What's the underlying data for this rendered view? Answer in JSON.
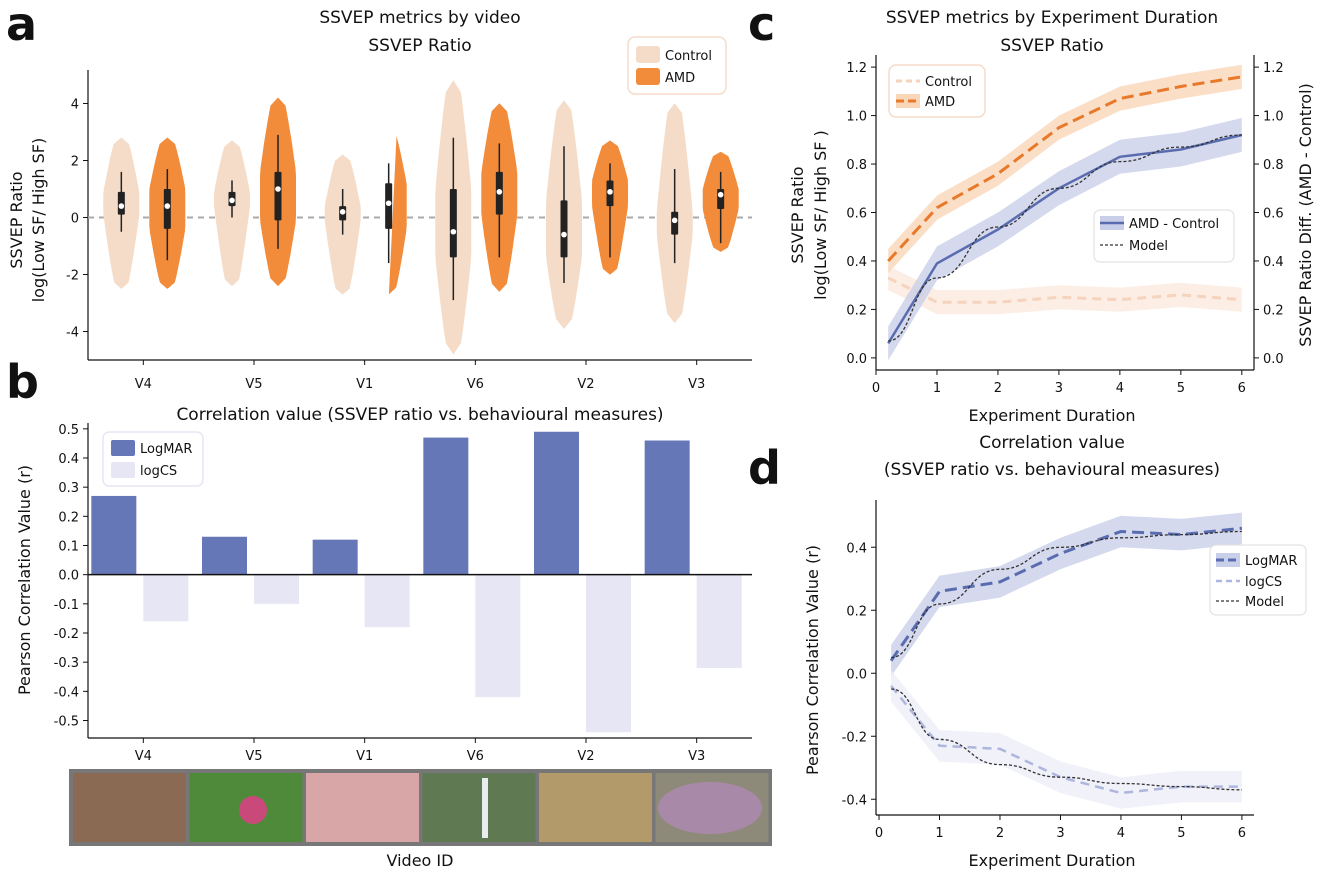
{
  "figure": {
    "colors": {
      "control_light": "#f5dcc8",
      "amd": "#f28c3a",
      "logmar": "#6677b8",
      "logcs": "#e6e6f5",
      "axis": "#111111",
      "zero_dash": "#aaaaaa",
      "model": "#333333"
    },
    "panel_labels": {
      "a": "a",
      "b": "b",
      "c": "c",
      "d": "d"
    }
  },
  "chart_data": [
    {
      "id": "a",
      "type": "violin",
      "title": "SSVEP metrics by video",
      "subtitle": "SSVEP Ratio",
      "ylabel": [
        "SSVEP Ratio",
        "log(Low SF/ High SF)"
      ],
      "ylim": [
        -5,
        5
      ],
      "yticks": [
        -4,
        -2,
        0,
        2,
        4
      ],
      "ytick_labels": [
        "-4",
        "-2",
        "0",
        "2",
        "4"
      ],
      "categories": [
        "V4",
        "V5",
        "V1",
        "V6",
        "V2",
        "V3"
      ],
      "legend": {
        "position": "top-right",
        "items": [
          "Control",
          "AMD"
        ]
      },
      "series": [
        {
          "name": "Control",
          "median": [
            0.4,
            0.6,
            0.2,
            -0.5,
            -0.6,
            -0.1
          ],
          "q1": [
            0.1,
            0.4,
            -0.1,
            -1.4,
            -1.4,
            -0.6
          ],
          "q3": [
            0.9,
            0.9,
            0.4,
            1.0,
            0.6,
            0.2
          ],
          "whisker_low": [
            -0.5,
            0.0,
            -0.6,
            -2.9,
            -2.3,
            -1.6
          ],
          "whisker_high": [
            1.6,
            1.3,
            1.0,
            2.8,
            2.5,
            1.7
          ],
          "min": [
            -2.5,
            -2.4,
            -2.7,
            -4.8,
            -3.9,
            -3.7
          ],
          "max": [
            2.8,
            2.7,
            2.2,
            4.8,
            4.1,
            4.0
          ]
        },
        {
          "name": "AMD",
          "median": [
            0.4,
            1.0,
            0.5,
            0.9,
            0.9,
            0.8
          ],
          "q1": [
            -0.4,
            -0.1,
            -0.4,
            0.1,
            0.4,
            0.3
          ],
          "q3": [
            1.0,
            1.6,
            1.2,
            1.6,
            1.3,
            1.0
          ],
          "whisker_low": [
            -1.5,
            -1.1,
            -1.6,
            -1.4,
            -1.4,
            -0.9
          ],
          "whisker_high": [
            1.7,
            2.9,
            1.9,
            2.6,
            1.9,
            1.6
          ],
          "min": [
            -2.5,
            -2.4,
            -2.7,
            -2.6,
            -2.0,
            -1.2
          ],
          "max": [
            2.8,
            4.2,
            3.1,
            4.0,
            2.7,
            2.3
          ]
        }
      ],
      "reference_line": 0
    },
    {
      "id": "b",
      "type": "bar",
      "title": "Correlation value (SSVEP ratio vs. behavioural measures)",
      "ylabel": "Pearson Correlation Value (r)",
      "xlabel": "Video ID",
      "ylim": [
        -0.56,
        0.52
      ],
      "yticks": [
        0.5,
        0.4,
        0.3,
        0.2,
        0.1,
        0.0,
        -0.1,
        -0.2,
        -0.3,
        -0.4,
        -0.5
      ],
      "ytick_labels": [
        "0.5",
        "0.4",
        "0.3",
        "0.2",
        "0.1",
        "0.0",
        "-0.1",
        "-0.2",
        "-0.3",
        "-0.4",
        "-0.5"
      ],
      "categories": [
        "V4",
        "V5",
        "V1",
        "V6",
        "V2",
        "V3"
      ],
      "legend": {
        "position": "top-left",
        "items": [
          "LogMAR",
          "logCS"
        ]
      },
      "series": [
        {
          "name": "LogMAR",
          "values": [
            0.27,
            0.13,
            0.12,
            0.47,
            0.49,
            0.46
          ]
        },
        {
          "name": "logCS",
          "values": [
            -0.16,
            -0.1,
            -0.18,
            -0.42,
            -0.54,
            -0.32
          ]
        }
      ],
      "thumbnails": [
        "V4",
        "V5",
        "V1",
        "V6",
        "V2",
        "V3"
      ]
    },
    {
      "id": "c",
      "type": "line",
      "title": "SSVEP metrics by Experiment Duration",
      "subtitle": "SSVEP Ratio",
      "ylabel": [
        "SSVEP Ratio",
        "log(Low SF/ High SF )"
      ],
      "ylabel_right": "SSVEP Ratio Diff. (AMD - Control)",
      "xlabel": "Experiment Duration",
      "xlim": [
        0,
        6.2
      ],
      "ylim": [
        -0.05,
        1.25
      ],
      "xticks": [
        0,
        1,
        2,
        3,
        4,
        5,
        6
      ],
      "xtick_labels": [
        "0",
        "1",
        "2",
        "3",
        "4",
        "5",
        "6"
      ],
      "yticks": [
        0.0,
        0.2,
        0.4,
        0.6,
        0.8,
        1.0,
        1.2
      ],
      "ytick_labels": [
        "0.0",
        "0.2",
        "0.4",
        "0.6",
        "0.8",
        "1.0",
        "1.2"
      ],
      "legend_top": {
        "position": "top-left",
        "items": [
          "Control",
          "AMD"
        ]
      },
      "legend_mid": {
        "position": "center-right",
        "items": [
          "AMD - Control",
          "Model"
        ]
      },
      "x": [
        0.2,
        1,
        2,
        3,
        4,
        5,
        6
      ],
      "series": [
        {
          "name": "Control",
          "values": [
            0.33,
            0.23,
            0.23,
            0.25,
            0.24,
            0.26,
            0.24
          ],
          "band": 0.05,
          "style": "dashed-light"
        },
        {
          "name": "AMD",
          "values": [
            0.4,
            0.62,
            0.76,
            0.95,
            1.07,
            1.12,
            1.16
          ],
          "band": 0.05,
          "style": "dashed"
        },
        {
          "name": "AMD - Control",
          "values": [
            0.06,
            0.39,
            0.53,
            0.7,
            0.83,
            0.86,
            0.92
          ],
          "band": 0.07,
          "style": "solid"
        },
        {
          "name": "Model",
          "values": [
            0.07,
            0.33,
            0.54,
            0.7,
            0.81,
            0.87,
            0.92
          ],
          "style": "dotted"
        }
      ]
    },
    {
      "id": "d",
      "type": "line",
      "title": "Correlation value",
      "subtitle": "(SSVEP ratio vs. behavioural measures)",
      "ylabel": "Pearson Correlation Value (r)",
      "xlabel": "Experiment Duration",
      "xlim": [
        -0.05,
        6.2
      ],
      "ylim": [
        -0.45,
        0.55
      ],
      "xticks": [
        0,
        1,
        2,
        3,
        4,
        5,
        6
      ],
      "xtick_labels": [
        "0",
        "1",
        "2",
        "3",
        "4",
        "5",
        "6"
      ],
      "yticks": [
        0.4,
        0.2,
        0.0,
        -0.2,
        -0.4
      ],
      "ytick_labels": [
        "0.4",
        "0.2",
        "0.0",
        "-0.2",
        "-0.4"
      ],
      "legend": {
        "position": "center-right",
        "items": [
          "LogMAR",
          "logCS",
          "Model"
        ]
      },
      "x": [
        0.2,
        1,
        2,
        3,
        4,
        5,
        6
      ],
      "series": [
        {
          "name": "LogMAR",
          "values": [
            0.04,
            0.26,
            0.29,
            0.38,
            0.45,
            0.44,
            0.46
          ],
          "band": 0.05,
          "style": "dashed"
        },
        {
          "name": "logCS",
          "values": [
            -0.04,
            -0.23,
            -0.24,
            -0.33,
            -0.38,
            -0.36,
            -0.36
          ],
          "band": 0.05,
          "style": "dashed-light"
        },
        {
          "name": "Model",
          "values": [
            0.05,
            0.22,
            0.33,
            0.4,
            0.43,
            0.44,
            0.45
          ],
          "style": "dotted"
        },
        {
          "name": "Model",
          "values": [
            -0.05,
            -0.21,
            -0.29,
            -0.33,
            -0.35,
            -0.36,
            -0.37
          ],
          "style": "dotted"
        }
      ]
    }
  ]
}
